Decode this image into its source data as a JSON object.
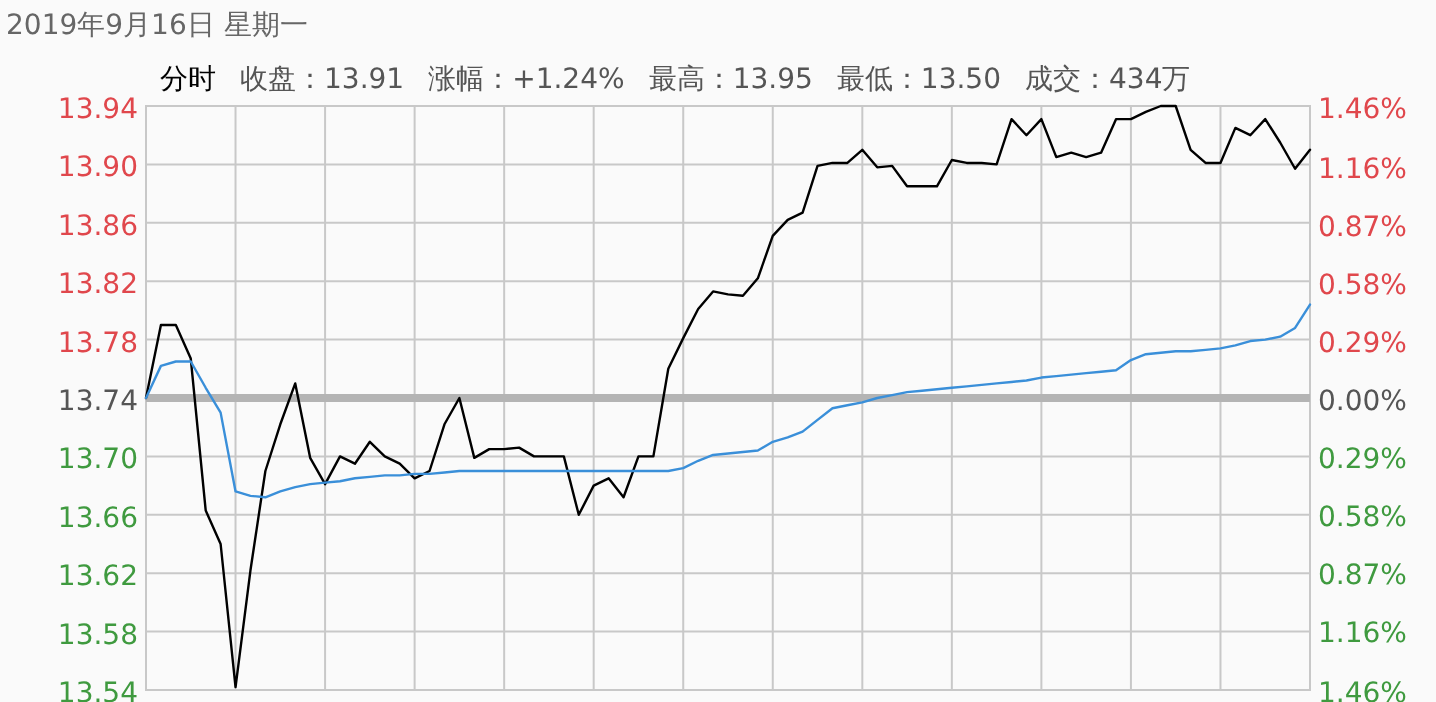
{
  "chart_data": {
    "type": "line",
    "title": "2019年9月16日 星期一",
    "annotations": [
      "分时",
      "收盘：13.91",
      "涨幅：+1.24%",
      "最高：13.95",
      "最低：13.50",
      "成交：434万"
    ],
    "categories": [
      null,
      null,
      null,
      null,
      null,
      null,
      null,
      null,
      null,
      null,
      null,
      null,
      null,
      null,
      null,
      null,
      null,
      null,
      null,
      null,
      null,
      null,
      null,
      null,
      null,
      null,
      null,
      null,
      null,
      null,
      null,
      null,
      null,
      null,
      null,
      null,
      null,
      null,
      null,
      null,
      null,
      null,
      null,
      null,
      null,
      null,
      null,
      null,
      null,
      null,
      null,
      null,
      null,
      null,
      null,
      null,
      null,
      null,
      null,
      null,
      null,
      null,
      null,
      null,
      null,
      null,
      null,
      null,
      null,
      null,
      null,
      null,
      null,
      null,
      null,
      null,
      null,
      null,
      null
    ],
    "series": [
      {
        "color": "#000000",
        "values": [
          13.74,
          13.79,
          13.79,
          13.767,
          13.663,
          13.64,
          13.542,
          13.622,
          13.69,
          13.722,
          13.75,
          13.699,
          13.681,
          13.7,
          13.695,
          13.71,
          13.7,
          13.695,
          13.685,
          13.69,
          13.722,
          13.74,
          13.699,
          13.705,
          13.705,
          13.706,
          13.7,
          13.7,
          13.7,
          13.66,
          13.68,
          13.685,
          13.672,
          13.7,
          13.7,
          13.76,
          13.781,
          13.801,
          13.813,
          13.811,
          13.81,
          13.822,
          13.851,
          13.862,
          13.867,
          13.899,
          13.901,
          13.901,
          13.91,
          13.898,
          13.899,
          13.885,
          13.885,
          13.885,
          13.903,
          13.901,
          13.901,
          13.9,
          13.931,
          13.92,
          13.931,
          13.905,
          13.908,
          13.905,
          13.908,
          13.931,
          13.931,
          13.936,
          13.94,
          13.94,
          13.91,
          13.901,
          13.901,
          13.925,
          13.92,
          13.931,
          13.915,
          13.897,
          13.91
        ]
      },
      {
        "color": "#3a8fd9",
        "values": [
          13.74,
          13.762,
          13.765,
          13.765,
          13.747,
          13.73,
          13.676,
          13.673,
          13.672,
          13.676,
          13.679,
          13.681,
          13.682,
          13.683,
          13.685,
          13.686,
          13.687,
          13.687,
          13.688,
          13.688,
          13.689,
          13.69,
          13.69,
          13.69,
          13.69,
          13.69,
          13.69,
          13.69,
          13.69,
          13.69,
          13.69,
          13.69,
          13.69,
          13.69,
          13.69,
          13.69,
          13.692,
          13.697,
          13.701,
          13.702,
          13.703,
          13.704,
          13.71,
          13.713,
          13.717,
          13.725,
          13.733,
          13.735,
          13.737,
          13.74,
          13.742,
          13.744,
          13.745,
          13.746,
          13.747,
          13.748,
          13.749,
          13.75,
          13.751,
          13.752,
          13.754,
          13.755,
          13.756,
          13.757,
          13.758,
          13.759,
          13.766,
          13.77,
          13.771,
          13.772,
          13.772,
          13.773,
          13.774,
          13.776,
          13.779,
          13.78,
          13.782,
          13.788,
          13.804
        ]
      }
    ],
    "ylim": [
      13.54,
      13.94
    ],
    "yticks": [
      {
        "value": 13.54,
        "label": "13.54"
      },
      {
        "value": 13.58,
        "label": "13.58"
      },
      {
        "value": 13.62,
        "label": "13.62"
      },
      {
        "value": 13.66,
        "label": "13.66"
      },
      {
        "value": 13.7,
        "label": "13.70"
      },
      {
        "value": 13.74,
        "label": "13.74"
      },
      {
        "value": 13.78,
        "label": "13.78"
      },
      {
        "value": 13.82,
        "label": "13.82"
      },
      {
        "value": 13.86,
        "label": "13.86"
      },
      {
        "value": 13.9,
        "label": "13.90"
      },
      {
        "value": 13.94,
        "label": "13.94"
      }
    ],
    "y2lim": [
      -1.46,
      1.46
    ],
    "y2ticks": [
      {
        "value": -1.46,
        "label": "1.46%"
      },
      {
        "value": -1.16,
        "label": "1.16%"
      },
      {
        "value": -0.87,
        "label": "0.87%"
      },
      {
        "value": -0.58,
        "label": "0.58%"
      },
      {
        "value": -0.29,
        "label": "0.29%"
      },
      {
        "value": 0,
        "label": "0.00%"
      },
      {
        "value": 0.29,
        "label": "0.29%"
      },
      {
        "value": 0.58,
        "label": "0.58%"
      },
      {
        "value": 0.87,
        "label": "0.87%"
      },
      {
        "value": 1.16,
        "label": "1.16%"
      },
      {
        "value": 1.46,
        "label": "1.46%"
      }
    ],
    "ref_lines": [
      {
        "axis": "y",
        "value": 13.74,
        "color": "#b4b4b4"
      }
    ],
    "grid": true,
    "tick_labels": "y"
  }
}
